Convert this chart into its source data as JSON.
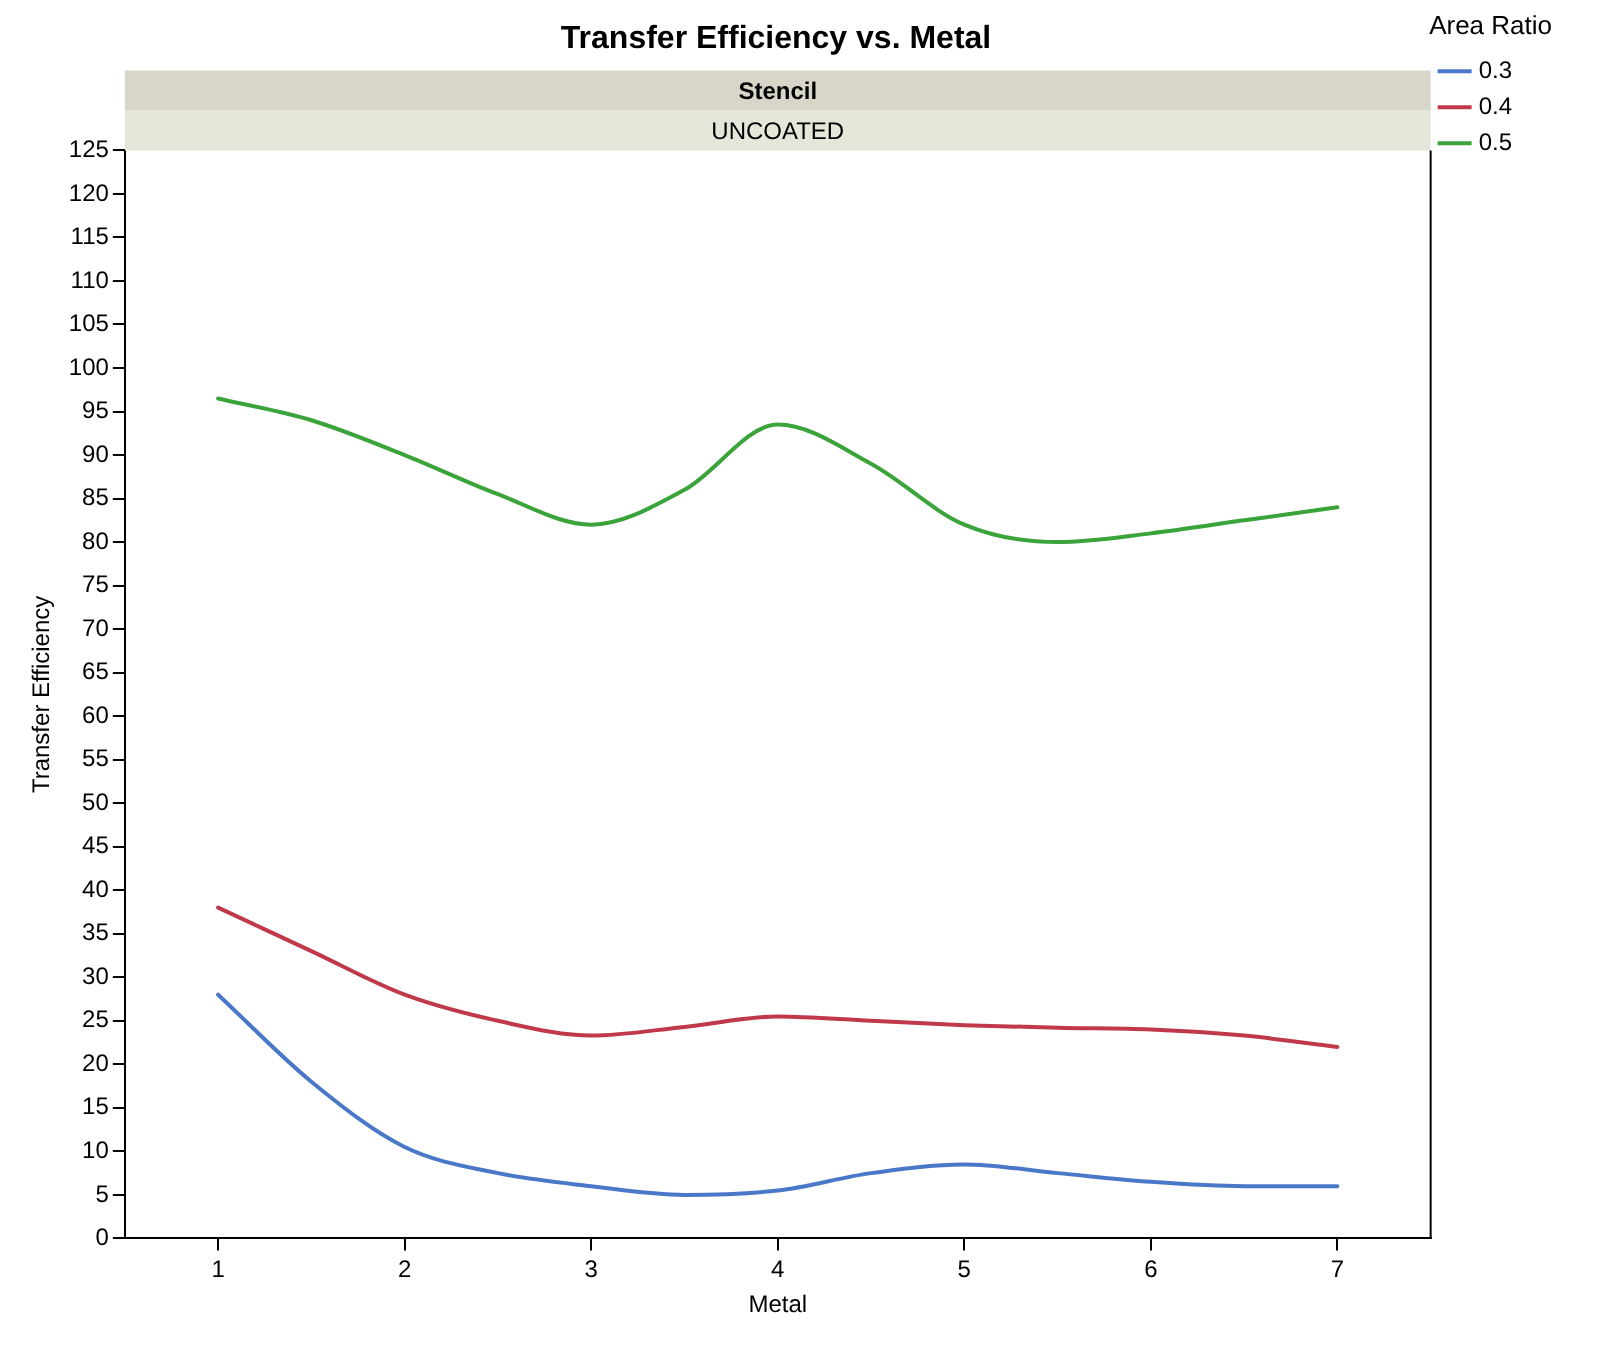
{
  "chart_data": {
    "type": "line",
    "title": "Transfer Efficiency vs. Metal",
    "xlabel": "Metal",
    "ylabel": "Transfer Efficiency",
    "legend_title": "Area Ratio",
    "annotations": [
      "Stencil",
      "UNCOATED"
    ],
    "x": [
      1,
      1.5,
      2,
      2.5,
      3,
      3.5,
      4,
      4.5,
      5,
      5.5,
      6,
      6.5,
      7
    ],
    "series": [
      {
        "name": "0.3",
        "color": "#4a78c8",
        "values": [
          28,
          18,
          10.5,
          7.5,
          6,
          5,
          5.5,
          7.5,
          8.5,
          7.5,
          6.5,
          6,
          6
        ]
      },
      {
        "name": "0.4",
        "color": "#c0394b",
        "values": [
          38,
          33,
          28,
          25,
          23.3,
          24.3,
          25.5,
          25,
          24.5,
          24.2,
          24,
          23.3,
          22
        ]
      },
      {
        "name": "0.5",
        "color": "#3aa33a",
        "values": [
          96.5,
          94,
          90,
          85.5,
          82,
          86,
          93.5,
          89,
          82,
          80,
          81,
          82.5,
          84
        ]
      }
    ],
    "xlim": [
      0.5,
      7.5
    ],
    "xticks": [
      1,
      2,
      3,
      4,
      5,
      6,
      7
    ],
    "ylim": [
      0,
      125
    ],
    "yticks": [
      0,
      5,
      10,
      15,
      20,
      25,
      30,
      35,
      40,
      45,
      50,
      55,
      60,
      65,
      70,
      75,
      80,
      85,
      90,
      95,
      100,
      105,
      110,
      115,
      120,
      125
    ],
    "grid": false,
    "legend": "right",
    "marker": "none",
    "line_style": "solid"
  }
}
